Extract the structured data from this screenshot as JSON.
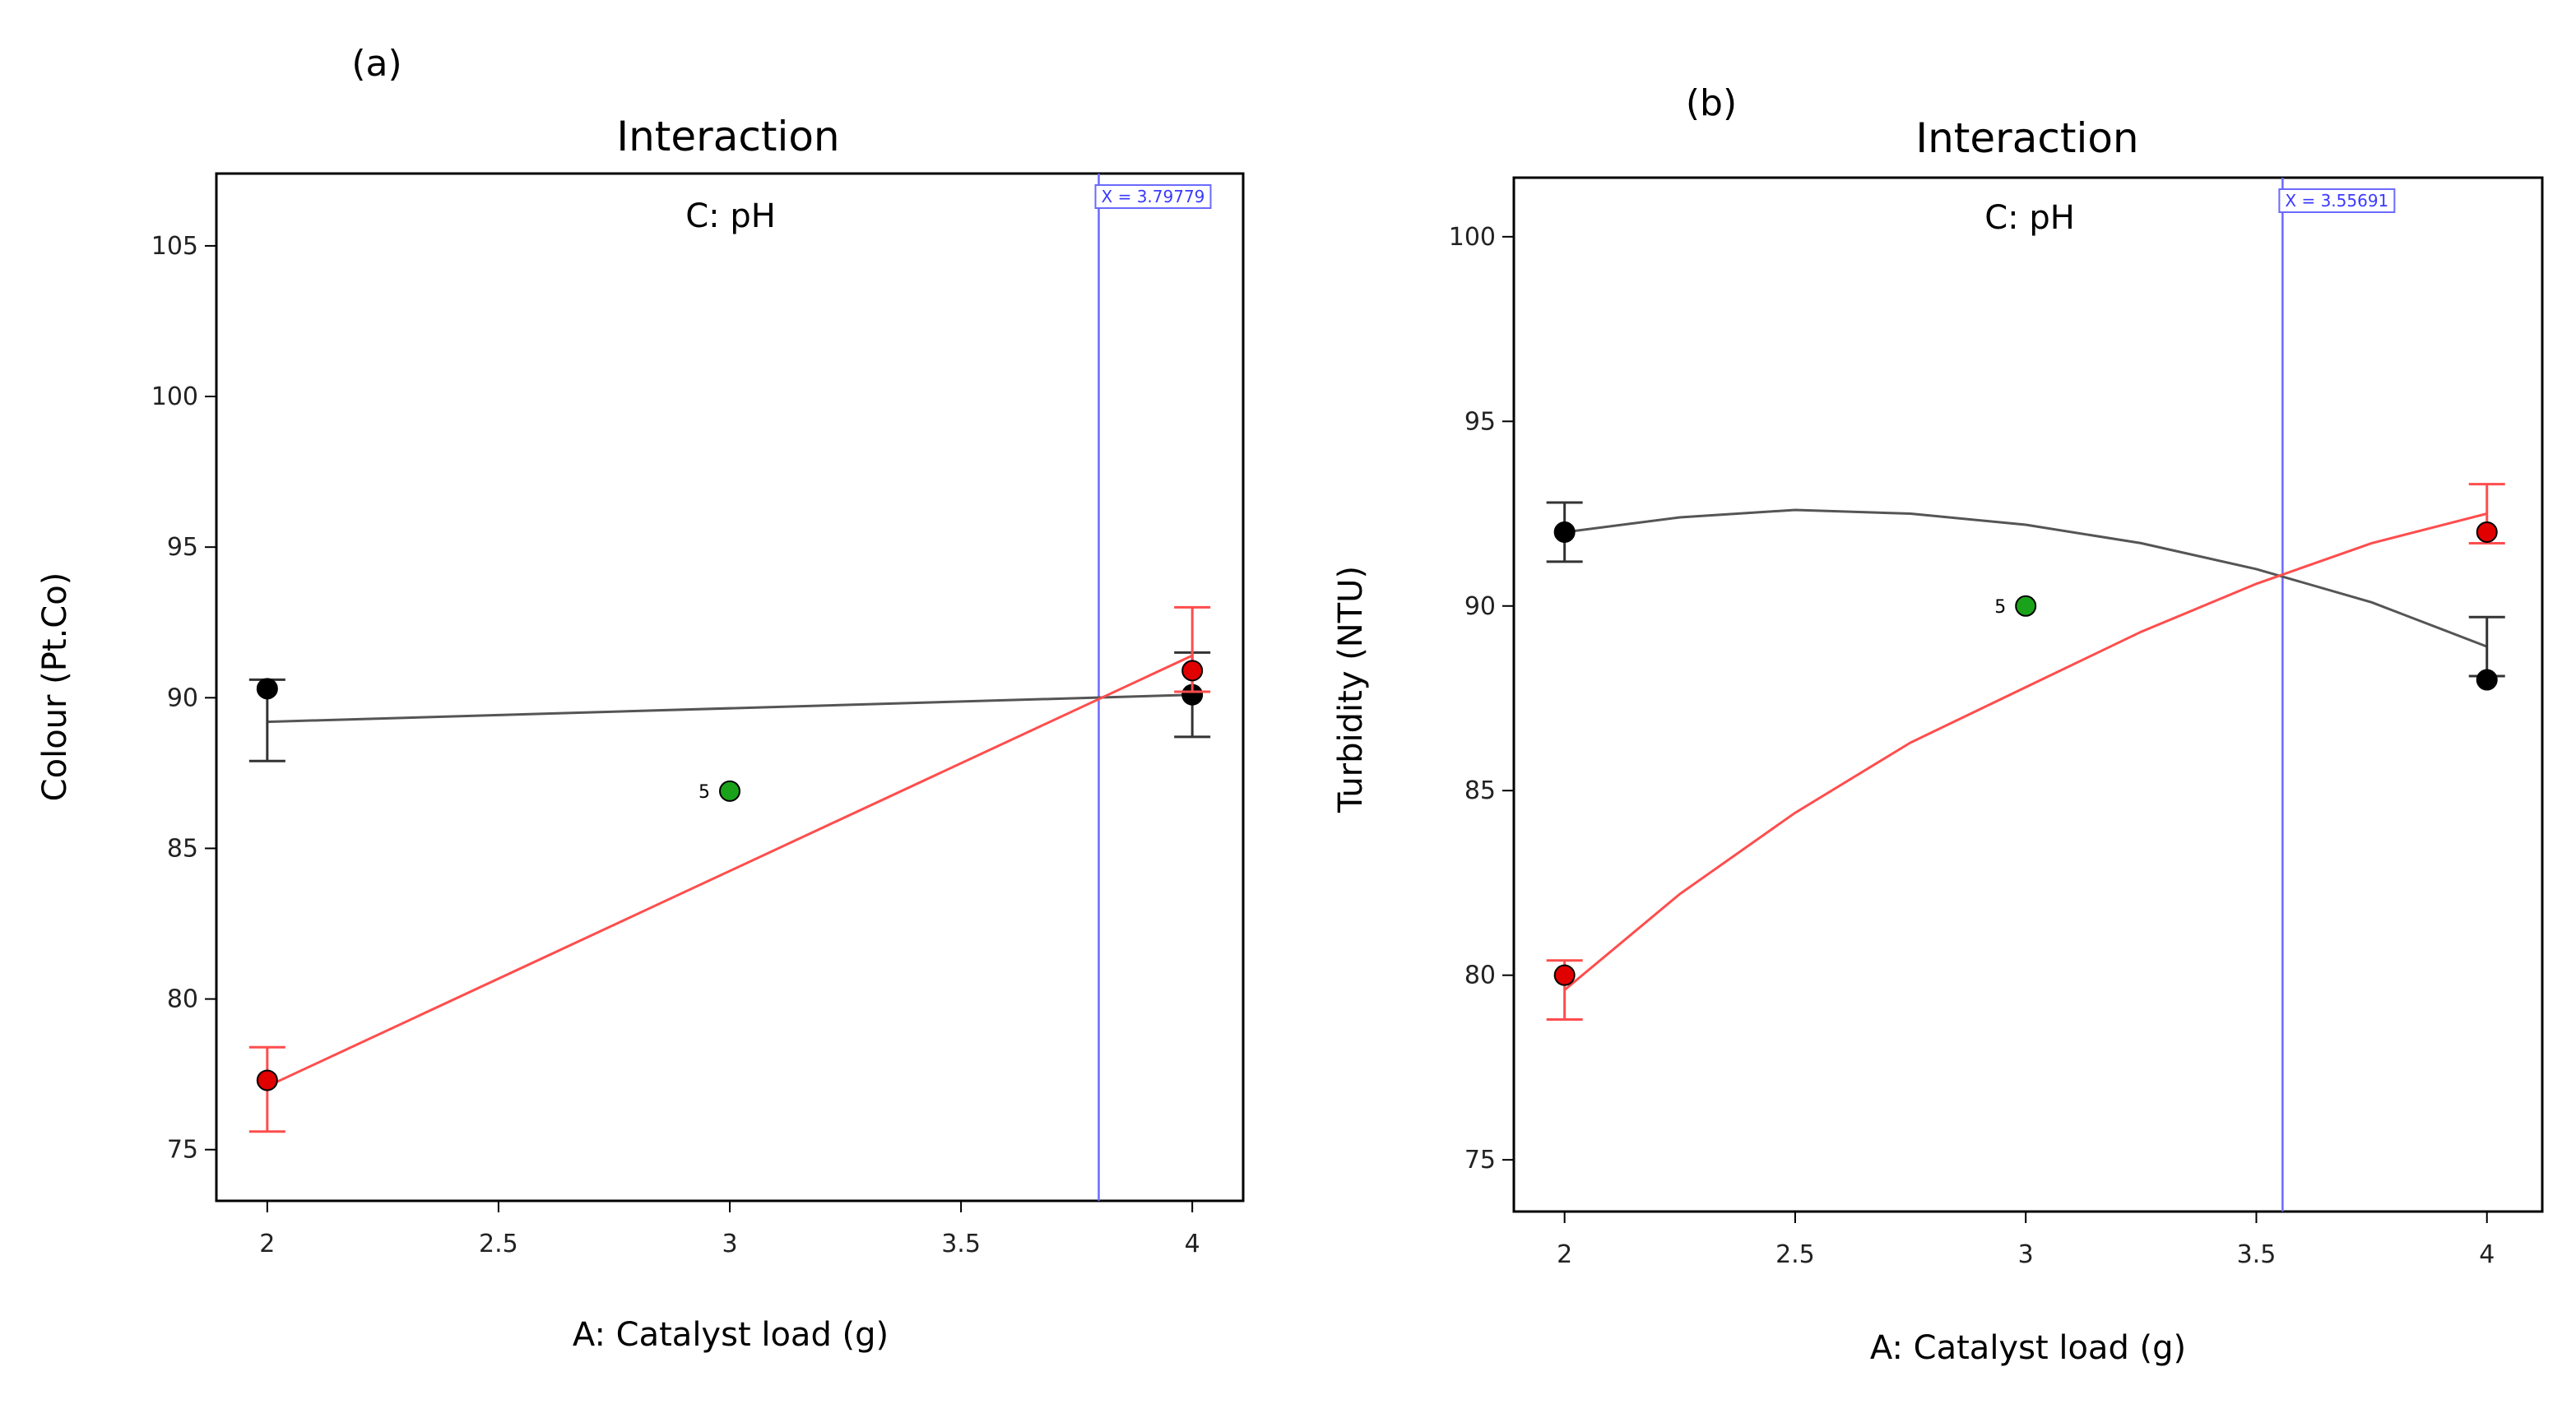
{
  "colors": {
    "black_series": "#000000",
    "black_line": "#555555",
    "red_series": "#ff4d4d",
    "red_point": "#e00000",
    "green_point": "#1aa31a",
    "crosshair": "#6a6aff",
    "frame": "#000000"
  },
  "chart_data": [
    {
      "type": "line",
      "panel_label": "(a)",
      "title": "Interaction",
      "factor_label": "C: pH",
      "xlabel": "A: Catalyst load (g)",
      "ylabel": "Colour  (Pt.Co)",
      "xlim": [
        1.89,
        4.11
      ],
      "ylim": [
        73.3,
        107.4
      ],
      "xticks": [
        2,
        2.5,
        3,
        3.5,
        4
      ],
      "xtick_labels": [
        "2",
        "2.5",
        "3",
        "3.5",
        "4"
      ],
      "yticks": [
        75,
        80,
        85,
        90,
        95,
        100,
        105
      ],
      "ytick_labels": [
        "75",
        "80",
        "85",
        "90",
        "95",
        "100",
        "105"
      ],
      "crosshair": {
        "x": 3.79779,
        "label": "X = 3.79779"
      },
      "series": [
        {
          "name": "black",
          "line": {
            "x": [
              2,
              4
            ],
            "y": [
              89.2,
              90.1
            ]
          },
          "points": {
            "x": [
              2,
              4
            ],
            "y": [
              90.3,
              90.1
            ]
          },
          "error_bars": [
            {
              "x": 2,
              "low": 87.9,
              "high": 90.6
            },
            {
              "x": 4,
              "low": 88.7,
              "high": 91.5
            }
          ]
        },
        {
          "name": "red",
          "line": {
            "x": [
              2,
              4
            ],
            "y": [
              77.1,
              91.4
            ]
          },
          "points": {
            "x": [
              2,
              4
            ],
            "y": [
              77.3,
              90.9
            ]
          },
          "error_bars": [
            {
              "x": 2,
              "low": 75.6,
              "high": 78.4
            },
            {
              "x": 4,
              "low": 90.2,
              "high": 93.0
            }
          ]
        }
      ],
      "center_point": {
        "x": 3,
        "y": 86.9,
        "label": "5"
      }
    },
    {
      "type": "line",
      "panel_label": "(b)",
      "title": "Interaction",
      "factor_label": "C: pH",
      "xlabel": "A: Catalyst load (g)",
      "ylabel": "Turbidity  (NTU)",
      "xlim": [
        1.89,
        4.12
      ],
      "ylim": [
        73.6,
        101.6
      ],
      "xticks": [
        2,
        2.5,
        3,
        3.5,
        4
      ],
      "xtick_labels": [
        "2",
        "2.5",
        "3",
        "3.5",
        "4"
      ],
      "yticks": [
        75,
        80,
        85,
        90,
        95,
        100
      ],
      "ytick_labels": [
        "75",
        "80",
        "85",
        "90",
        "95",
        "100"
      ],
      "crosshair": {
        "x": 3.55691,
        "label": "X = 3.55691"
      },
      "series": [
        {
          "name": "black",
          "line": {
            "x": [
              2,
              2.25,
              2.5,
              2.75,
              3,
              3.25,
              3.5,
              3.75,
              4
            ],
            "y": [
              92.0,
              92.4,
              92.6,
              92.5,
              92.2,
              91.7,
              91.0,
              90.1,
              88.9
            ]
          },
          "points": {
            "x": [
              2,
              4
            ],
            "y": [
              92.0,
              88.0
            ]
          },
          "error_bars": [
            {
              "x": 2,
              "low": 91.2,
              "high": 92.8
            },
            {
              "x": 4,
              "low": 88.1,
              "high": 89.7
            }
          ]
        },
        {
          "name": "red",
          "line": {
            "x": [
              2,
              2.25,
              2.5,
              2.75,
              3,
              3.25,
              3.5,
              3.75,
              4
            ],
            "y": [
              79.6,
              82.2,
              84.4,
              86.3,
              87.8,
              89.3,
              90.6,
              91.7,
              92.5
            ]
          },
          "points": {
            "x": [
              2,
              4
            ],
            "y": [
              80.0,
              92.0
            ]
          },
          "error_bars": [
            {
              "x": 2,
              "low": 78.8,
              "high": 80.4
            },
            {
              "x": 4,
              "low": 91.7,
              "high": 93.3
            }
          ]
        }
      ],
      "center_point": {
        "x": 3,
        "y": 90.0,
        "label": "5"
      }
    }
  ]
}
